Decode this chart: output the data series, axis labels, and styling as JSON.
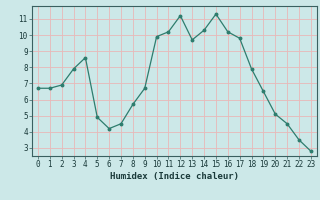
{
  "x": [
    0,
    1,
    2,
    3,
    4,
    5,
    6,
    7,
    8,
    9,
    10,
    11,
    12,
    13,
    14,
    15,
    16,
    17,
    18,
    19,
    20,
    21,
    22,
    23
  ],
  "y": [
    6.7,
    6.7,
    6.9,
    7.9,
    8.6,
    4.9,
    4.2,
    4.5,
    5.7,
    6.7,
    9.9,
    10.2,
    11.2,
    9.7,
    10.3,
    11.3,
    10.2,
    9.8,
    7.9,
    6.5,
    5.1,
    4.5,
    3.5,
    2.8
  ],
  "line_color": "#2e7d6e",
  "marker": "o",
  "marker_size": 1.8,
  "line_width": 0.9,
  "xlabel": "Humidex (Indice chaleur)",
  "xlim": [
    -0.5,
    23.5
  ],
  "ylim": [
    2.5,
    11.8
  ],
  "xticks": [
    0,
    1,
    2,
    3,
    4,
    5,
    6,
    7,
    8,
    9,
    10,
    11,
    12,
    13,
    14,
    15,
    16,
    17,
    18,
    19,
    20,
    21,
    22,
    23
  ],
  "yticks": [
    3,
    4,
    5,
    6,
    7,
    8,
    9,
    10,
    11
  ],
  "background_color": "#cce8e8",
  "grid_color": "#e8b8b8",
  "tick_label_fontsize": 5.5,
  "xlabel_fontsize": 6.5
}
